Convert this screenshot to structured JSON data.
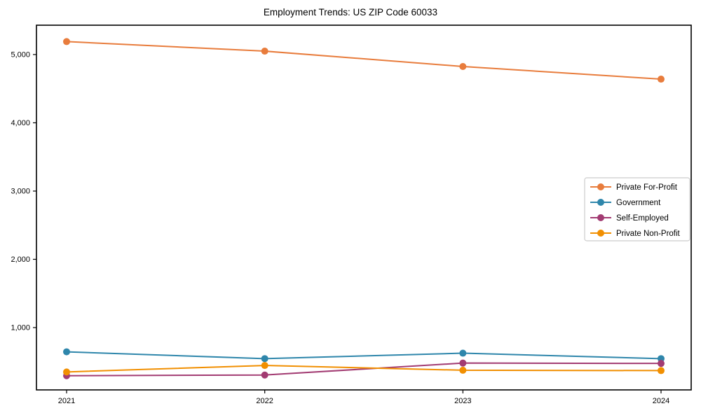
{
  "title": "Employment Trends: US ZIP Code 60033",
  "chart_data": {
    "type": "line",
    "title": "Employment Trends: US ZIP Code 60033",
    "x": [
      "2021",
      "2022",
      "2023",
      "2024"
    ],
    "xlabel": "",
    "ylabel": "",
    "series": [
      {
        "name": "Private For-Profit",
        "color": "#E87C3C",
        "values": [
          5190,
          5050,
          4825,
          4640
        ]
      },
      {
        "name": "Government",
        "color": "#2E86AB",
        "values": [
          645,
          545,
          625,
          545
        ]
      },
      {
        "name": "Self-Employed",
        "color": "#A23B72",
        "values": [
          295,
          305,
          480,
          475
        ]
      },
      {
        "name": "Private Non-Profit",
        "color": "#F18F01",
        "values": [
          350,
          445,
          375,
          370
        ]
      }
    ],
    "yticks": [
      1000,
      2000,
      3000,
      4000,
      5000
    ],
    "ytick_labels": [
      "1,000",
      "2,000",
      "3,000",
      "4,000",
      "5,000"
    ],
    "ylim": [
      87,
      5430
    ],
    "grid": false,
    "marker": "o",
    "legend": {
      "position": "center right",
      "entries": [
        "Private For-Profit",
        "Government",
        "Self-Employed",
        "Private Non-Profit"
      ],
      "border_color": "#cccccc",
      "background": "#ffffff"
    },
    "spine_color": "#000000"
  }
}
